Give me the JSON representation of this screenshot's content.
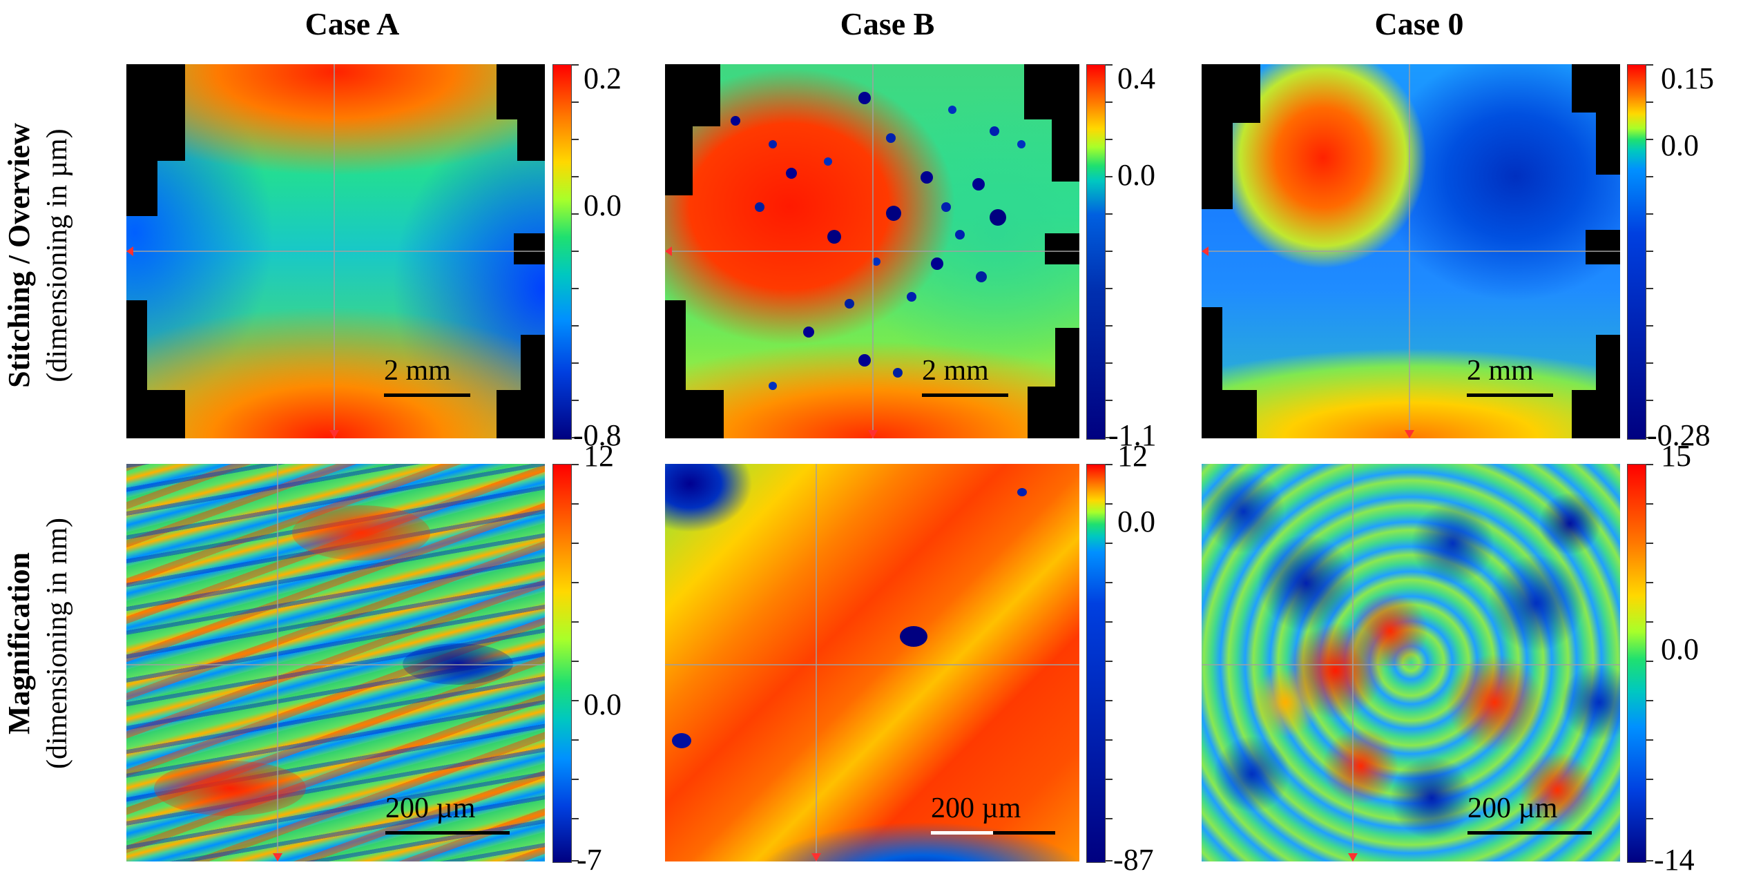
{
  "columns": [
    {
      "title": "Case A"
    },
    {
      "title": "Case B"
    },
    {
      "title": "Case 0"
    }
  ],
  "rows": [
    {
      "label_bold": "Stitching / Overview",
      "label_sub": "(dimensioning in µm)"
    },
    {
      "label_bold": "Magnification",
      "label_sub": "(dimensioning in nm)"
    }
  ],
  "panels": {
    "a_top": {
      "scale": "2 mm",
      "cbar_max": "0.2",
      "cbar_mid": "0.0",
      "cbar_min": "-0.8"
    },
    "b_top": {
      "scale": "2 mm",
      "cbar_max": "0.4",
      "cbar_mid": "0.0",
      "cbar_min": "-1.1"
    },
    "c_top": {
      "scale": "2 mm",
      "cbar_max": "0.15",
      "cbar_mid": "0.0",
      "cbar_min": "-0.28"
    },
    "a_bot": {
      "scale": "200 µm",
      "cbar_max": "12",
      "cbar_mid": "0.0",
      "cbar_min": "-7"
    },
    "b_bot": {
      "scale": "200 µm",
      "cbar_max": "12",
      "cbar_mid": "0.0",
      "cbar_min": "-87"
    },
    "c_bot": {
      "scale": "200 µm",
      "cbar_max": "15",
      "cbar_mid": "0.0",
      "cbar_min": "-14"
    }
  },
  "colors": {
    "red": "#ff0000",
    "orange": "#ff7a00",
    "green": "#1fe070",
    "cyan": "#00c8c0",
    "blue": "#0090ff",
    "dark_blue": "#000080",
    "crosshair": "#a0a0a0",
    "marker": "#ff3030",
    "mask": "#000000"
  }
}
